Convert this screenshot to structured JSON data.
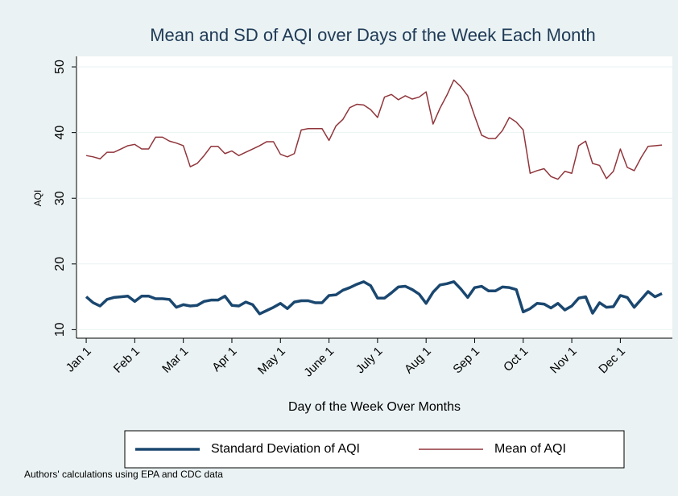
{
  "chart_data": {
    "type": "line",
    "title": "Mean and SD of AQI over Days of the Week Each Month",
    "xlabel": "Day of the Week Over Months",
    "ylabel": "AQI",
    "note": "Authors' calculations using EPA and CDC data",
    "x": [
      0,
      1,
      2,
      3,
      4,
      5,
      6,
      7,
      8,
      9,
      10,
      11,
      12,
      13,
      14,
      15,
      16,
      17,
      18,
      19,
      20,
      21,
      22,
      23,
      24,
      25,
      26,
      27,
      28,
      29,
      30,
      31,
      32,
      33,
      34,
      35,
      36,
      37,
      38,
      39,
      40,
      41,
      42,
      43,
      44,
      45,
      46,
      47,
      48,
      49,
      50,
      51,
      52,
      53,
      54,
      55,
      56,
      57,
      58,
      59,
      60,
      61,
      62,
      63,
      64,
      65,
      66,
      67,
      68,
      69,
      70,
      71,
      72,
      73,
      74,
      75,
      76,
      77,
      78,
      79,
      80,
      81,
      82,
      83
    ],
    "series": [
      {
        "name": "Standard Deviation of AQI",
        "color": "#1a476f",
        "width": 3.5,
        "values": [
          15.0,
          14.1,
          13.6,
          14.6,
          14.9,
          15.0,
          15.1,
          14.3,
          15.1,
          15.1,
          14.7,
          14.7,
          14.6,
          13.4,
          13.8,
          13.6,
          13.7,
          14.3,
          14.5,
          14.5,
          15.1,
          13.7,
          13.6,
          14.2,
          13.8,
          12.4,
          12.9,
          13.4,
          14.0,
          13.2,
          14.2,
          14.4,
          14.4,
          14.1,
          14.1,
          15.2,
          15.3,
          16.0,
          16.4,
          16.9,
          17.3,
          16.7,
          14.8,
          14.8,
          15.6,
          16.5,
          16.6,
          16.1,
          15.4,
          14.0,
          15.7,
          16.8,
          17.0,
          17.3,
          16.2,
          14.9,
          16.4,
          16.6,
          15.9,
          15.9,
          16.5,
          16.4,
          16.1,
          12.7,
          13.2,
          14.0,
          13.9,
          13.3,
          14.0,
          13.0,
          13.6,
          14.8,
          15.0,
          12.5,
          14.1,
          13.4,
          13.5,
          15.2,
          14.9,
          13.4,
          14.6,
          15.8,
          15.0,
          15.5
        ]
      },
      {
        "name": "Mean of AQI",
        "color": "#90353b",
        "width": 1.5,
        "values": [
          36.5,
          36.3,
          36.0,
          37.0,
          37.0,
          37.5,
          38.0,
          38.2,
          37.5,
          37.5,
          39.3,
          39.3,
          38.7,
          38.4,
          38.0,
          34.8,
          35.3,
          36.5,
          37.9,
          37.9,
          36.8,
          37.2,
          36.5,
          37.0,
          37.5,
          38.0,
          38.6,
          38.6,
          36.7,
          36.3,
          36.8,
          40.4,
          40.6,
          40.6,
          40.6,
          38.8,
          41.0,
          42.0,
          43.8,
          44.3,
          44.2,
          43.5,
          42.3,
          45.4,
          45.8,
          45.0,
          45.6,
          45.1,
          45.4,
          46.2,
          41.3,
          43.7,
          45.7,
          48.0,
          47.0,
          45.6,
          42.5,
          39.6,
          39.1,
          39.1,
          40.3,
          42.3,
          41.6,
          40.4,
          33.8,
          34.2,
          34.5,
          33.3,
          32.9,
          34.1,
          33.8,
          38.0,
          38.7,
          35.3,
          35.0,
          33.0,
          34.1,
          37.5,
          34.7,
          34.2,
          36.2,
          37.9,
          38.0,
          38.1
        ]
      }
    ],
    "xlim": [
      -1.4,
      84.5
    ],
    "xticks": [
      {
        "value": 0,
        "label": "Jan 1"
      },
      {
        "value": 7,
        "label": "Feb 1"
      },
      {
        "value": 14,
        "label": "Mar 1"
      },
      {
        "value": 21,
        "label": "Apr 1"
      },
      {
        "value": 28,
        "label": "May 1"
      },
      {
        "value": 35,
        "label": "June 1"
      },
      {
        "value": 42,
        "label": "July 1"
      },
      {
        "value": 49,
        "label": "Aug 1"
      },
      {
        "value": 56,
        "label": "Sep 1"
      },
      {
        "value": 63,
        "label": "Oct 1"
      },
      {
        "value": 70,
        "label": "Nov 1"
      },
      {
        "value": 77,
        "label": "Dec 1"
      }
    ],
    "ylim": [
      8.7,
      51.6
    ],
    "yticks": [
      10,
      20,
      30,
      40,
      50
    ],
    "grid": true,
    "legend": "bottom"
  }
}
